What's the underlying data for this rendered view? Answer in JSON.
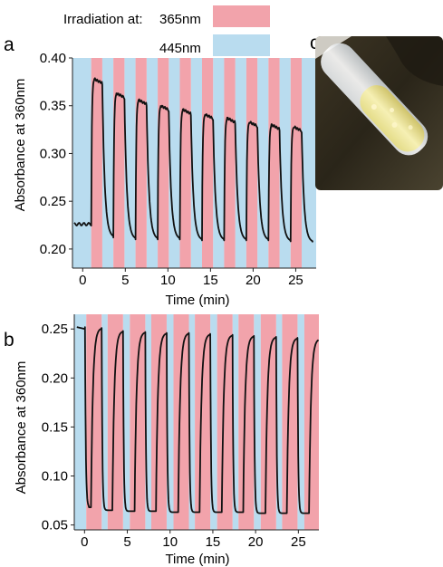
{
  "legend": {
    "title": "Irradiation at:",
    "items": [
      {
        "label": "365nm",
        "color": "#f2a3ab"
      },
      {
        "label": "445nm",
        "color": "#b9dcef"
      }
    ]
  },
  "photo": {
    "letter": "c"
  },
  "chart_data": [
    {
      "panel": "a",
      "type": "line",
      "xlabel": "Time (min)",
      "ylabel": "Absorbance at 360nm",
      "xlim": [
        -1.2,
        27.4
      ],
      "ylim": [
        0.18,
        0.4
      ],
      "xticks": [
        0,
        5,
        10,
        15,
        20,
        25
      ],
      "yticks": [
        0.2,
        0.25,
        0.3,
        0.35,
        0.4
      ],
      "ytick_labels": [
        "0.20",
        "0.25",
        "0.30",
        "0.35",
        "0.40"
      ],
      "peak_times": [
        1.0,
        3.6,
        6.2,
        8.8,
        11.4,
        14.0,
        16.6,
        19.2,
        21.8,
        24.4
      ],
      "uv_intervals": [
        [
          1.0,
          2.3
        ],
        [
          3.6,
          4.9
        ],
        [
          6.2,
          7.5
        ],
        [
          8.8,
          10.1
        ],
        [
          11.4,
          12.7
        ],
        [
          14.0,
          15.3
        ],
        [
          16.6,
          17.9
        ],
        [
          19.2,
          20.5
        ],
        [
          21.8,
          23.1
        ],
        [
          24.4,
          25.7
        ]
      ],
      "blue_intervals": [
        [
          -1.2,
          1.0
        ],
        [
          2.3,
          3.6
        ],
        [
          4.9,
          6.2
        ],
        [
          7.5,
          8.8
        ],
        [
          10.1,
          11.4
        ],
        [
          12.7,
          14.0
        ],
        [
          15.3,
          16.6
        ],
        [
          17.9,
          19.2
        ],
        [
          20.5,
          21.8
        ],
        [
          23.1,
          24.4
        ],
        [
          25.7,
          27.4
        ]
      ],
      "peak_values": [
        0.378,
        0.363,
        0.356,
        0.35,
        0.346,
        0.341,
        0.337,
        0.333,
        0.33,
        0.328
      ],
      "trough_values": [
        0.212,
        0.21,
        0.21,
        0.21,
        0.209,
        0.209,
        0.209,
        0.209,
        0.208,
        0.207
      ],
      "initial_value": 0.226,
      "final_value": 0.207
    },
    {
      "panel": "b",
      "type": "line",
      "xlabel": "Time (min)",
      "ylabel": "Absorbance at 360nm",
      "xlim": [
        -1.2,
        27.4
      ],
      "ylim": [
        0.045,
        0.265
      ],
      "xticks": [
        0,
        5,
        10,
        15,
        20,
        25
      ],
      "yticks": [
        0.05,
        0.1,
        0.15,
        0.2,
        0.25
      ],
      "ytick_labels": [
        "0.05",
        "0.10",
        "0.15",
        "0.20",
        "0.25"
      ],
      "uv_intervals": [
        [
          0.2,
          2.0
        ],
        [
          2.7,
          4.5
        ],
        [
          5.3,
          7.1
        ],
        [
          7.8,
          9.6
        ],
        [
          10.4,
          12.2
        ],
        [
          12.9,
          14.7
        ],
        [
          15.5,
          17.3
        ],
        [
          18.0,
          19.8
        ],
        [
          20.6,
          22.4
        ],
        [
          23.1,
          24.9
        ],
        [
          25.7,
          27.4
        ]
      ],
      "blue_intervals": [
        [
          -1.2,
          0.2
        ],
        [
          2.0,
          2.7
        ],
        [
          4.5,
          5.3
        ],
        [
          7.1,
          7.8
        ],
        [
          9.6,
          10.4
        ],
        [
          12.2,
          12.9
        ],
        [
          14.7,
          15.5
        ],
        [
          17.3,
          18.0
        ],
        [
          19.8,
          20.6
        ],
        [
          22.4,
          23.1
        ],
        [
          24.9,
          25.7
        ]
      ],
      "peak_values": [
        0.251,
        0.248,
        0.247,
        0.246,
        0.246,
        0.245,
        0.244,
        0.243,
        0.242,
        0.241,
        0.24
      ],
      "trough_values": [
        0.068,
        0.065,
        0.064,
        0.064,
        0.063,
        0.063,
        0.063,
        0.063,
        0.062,
        0.062
      ],
      "initial_value": 0.252
    }
  ]
}
